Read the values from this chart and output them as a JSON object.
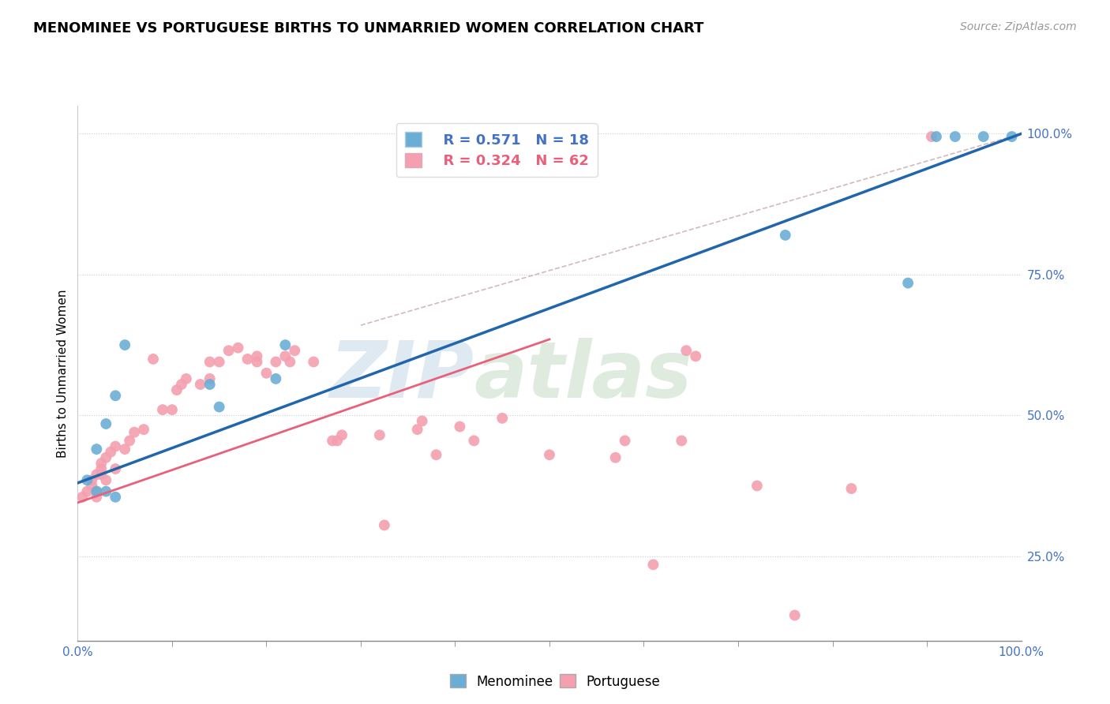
{
  "title": "MENOMINEE VS PORTUGUESE BIRTHS TO UNMARRIED WOMEN CORRELATION CHART",
  "source": "Source: ZipAtlas.com",
  "ylabel": "Births to Unmarried Women",
  "xlim": [
    0.0,
    1.0
  ],
  "ylim": [
    0.1,
    1.05
  ],
  "xtick_labels": [
    "0.0%",
    "100.0%"
  ],
  "ytick_labels": [
    "25.0%",
    "50.0%",
    "75.0%",
    "100.0%"
  ],
  "ytick_positions": [
    0.25,
    0.5,
    0.75,
    1.0
  ],
  "hline_positions": [
    0.25,
    0.5,
    0.75,
    1.0
  ],
  "menominee_color": "#6aaed6",
  "portuguese_color": "#f4a0b0",
  "menominee_R": 0.571,
  "menominee_N": 18,
  "portuguese_R": 0.324,
  "portuguese_N": 62,
  "regression_line_color_blue": "#2166ac",
  "regression_line_color_pink": "#e8607a",
  "dashed_line_color": "#c8a8a8",
  "watermark_zip": "ZIP",
  "watermark_atlas": "atlas",
  "watermark_color_zip": "#b8cfe0",
  "watermark_color_atlas": "#c8d8c0",
  "menominee_x": [
    0.01,
    0.05,
    0.02,
    0.02,
    0.03,
    0.03,
    0.04,
    0.04,
    0.14,
    0.15,
    0.21,
    0.22,
    0.75,
    0.88,
    0.91,
    0.93,
    0.96,
    0.99
  ],
  "menominee_y": [
    0.385,
    0.625,
    0.44,
    0.365,
    0.365,
    0.485,
    0.535,
    0.355,
    0.555,
    0.515,
    0.565,
    0.625,
    0.82,
    0.735,
    0.995,
    0.995,
    0.995,
    0.995
  ],
  "portuguese_x": [
    0.005,
    0.01,
    0.015,
    0.015,
    0.02,
    0.02,
    0.02,
    0.025,
    0.025,
    0.025,
    0.03,
    0.03,
    0.035,
    0.04,
    0.04,
    0.05,
    0.055,
    0.06,
    0.07,
    0.08,
    0.09,
    0.1,
    0.105,
    0.11,
    0.115,
    0.13,
    0.14,
    0.14,
    0.15,
    0.16,
    0.17,
    0.18,
    0.19,
    0.19,
    0.2,
    0.21,
    0.22,
    0.225,
    0.23,
    0.25,
    0.27,
    0.275,
    0.28,
    0.32,
    0.325,
    0.36,
    0.365,
    0.38,
    0.405,
    0.42,
    0.45,
    0.5,
    0.57,
    0.58,
    0.61,
    0.64,
    0.645,
    0.655,
    0.72,
    0.76,
    0.82,
    0.905
  ],
  "portuguese_y": [
    0.355,
    0.365,
    0.375,
    0.385,
    0.395,
    0.355,
    0.365,
    0.395,
    0.405,
    0.415,
    0.385,
    0.425,
    0.435,
    0.445,
    0.405,
    0.44,
    0.455,
    0.47,
    0.475,
    0.6,
    0.51,
    0.51,
    0.545,
    0.555,
    0.565,
    0.555,
    0.565,
    0.595,
    0.595,
    0.615,
    0.62,
    0.6,
    0.595,
    0.605,
    0.575,
    0.595,
    0.605,
    0.595,
    0.615,
    0.595,
    0.455,
    0.455,
    0.465,
    0.465,
    0.305,
    0.475,
    0.49,
    0.43,
    0.48,
    0.455,
    0.495,
    0.43,
    0.425,
    0.455,
    0.235,
    0.455,
    0.615,
    0.605,
    0.375,
    0.145,
    0.37,
    0.995
  ],
  "blue_line_x": [
    0.0,
    1.0
  ],
  "blue_line_y": [
    0.38,
    1.0
  ],
  "pink_line_x": [
    0.0,
    0.5
  ],
  "pink_line_y": [
    0.345,
    0.635
  ],
  "dashed_line_x": [
    0.3,
    1.0
  ],
  "dashed_line_y": [
    0.66,
    1.0
  ]
}
